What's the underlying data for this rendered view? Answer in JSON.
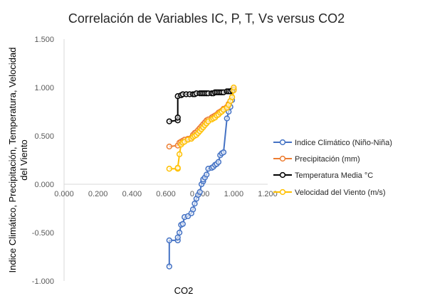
{
  "chart_data": {
    "type": "scatter",
    "title": "Correlación de Variables IC, P, T, Vs versus CO2",
    "xlabel": "CO2",
    "ylabel": "Indice Climático, Precipitación, Temperatura, Velocidad del Viento",
    "ylabel_lines": [
      "Indice Climático, Precipitación, Temperatura, Velocidad",
      "del Viento"
    ],
    "xlim": [
      0,
      1.2
    ],
    "ylim": [
      -1,
      1.5
    ],
    "xticks": [
      "0.000",
      "0.200",
      "0.400",
      "0.600",
      "0.800",
      "1.000",
      "1.200"
    ],
    "yticks": [
      "1.500",
      "1.000",
      "0.500",
      "0.000",
      "-0.500",
      "-1.000"
    ],
    "grid": false,
    "legend_position": "right",
    "series": [
      {
        "name": "Indice Climático (Niño-Niña)",
        "color": "#4472C4",
        "points": [
          [
            0.62,
            -0.85
          ],
          [
            0.62,
            -0.58
          ],
          [
            0.67,
            -0.58
          ],
          [
            0.67,
            -0.55
          ],
          [
            0.68,
            -0.5
          ],
          [
            0.69,
            -0.42
          ],
          [
            0.7,
            -0.41
          ],
          [
            0.71,
            -0.34
          ],
          [
            0.73,
            -0.33
          ],
          [
            0.75,
            -0.3
          ],
          [
            0.76,
            -0.26
          ],
          [
            0.77,
            -0.2
          ],
          [
            0.78,
            -0.15
          ],
          [
            0.79,
            -0.11
          ],
          [
            0.8,
            -0.08
          ],
          [
            0.81,
            0.0
          ],
          [
            0.82,
            0.03
          ],
          [
            0.82,
            0.05
          ],
          [
            0.83,
            0.07
          ],
          [
            0.84,
            0.1
          ],
          [
            0.85,
            0.16
          ],
          [
            0.87,
            0.17
          ],
          [
            0.88,
            0.18
          ],
          [
            0.89,
            0.2
          ],
          [
            0.9,
            0.21
          ],
          [
            0.91,
            0.23
          ],
          [
            0.92,
            0.3
          ],
          [
            0.93,
            0.32
          ],
          [
            0.94,
            0.33
          ],
          [
            0.96,
            0.68
          ],
          [
            0.97,
            0.75
          ],
          [
            0.98,
            0.8
          ],
          [
            0.99,
            0.87
          ],
          [
            1.0,
            0.98
          ]
        ]
      },
      {
        "name": "Precipitación (mm)",
        "color": "#ED7D31",
        "points": [
          [
            0.62,
            0.39
          ],
          [
            0.67,
            0.4
          ],
          [
            0.68,
            0.43
          ],
          [
            0.69,
            0.44
          ],
          [
            0.7,
            0.45
          ],
          [
            0.71,
            0.46
          ],
          [
            0.73,
            0.47
          ],
          [
            0.75,
            0.48
          ],
          [
            0.76,
            0.51
          ],
          [
            0.77,
            0.53
          ],
          [
            0.78,
            0.54
          ],
          [
            0.79,
            0.56
          ],
          [
            0.8,
            0.58
          ],
          [
            0.81,
            0.6
          ],
          [
            0.82,
            0.62
          ],
          [
            0.83,
            0.64
          ],
          [
            0.84,
            0.66
          ],
          [
            0.85,
            0.67
          ],
          [
            0.87,
            0.69
          ],
          [
            0.88,
            0.7
          ],
          [
            0.89,
            0.71
          ],
          [
            0.9,
            0.72
          ],
          [
            0.91,
            0.74
          ],
          [
            0.92,
            0.75
          ],
          [
            0.93,
            0.76
          ],
          [
            0.94,
            0.78
          ],
          [
            0.96,
            0.8
          ],
          [
            0.97,
            0.83
          ],
          [
            0.98,
            0.86
          ],
          [
            0.99,
            0.9
          ],
          [
            1.0,
            0.98
          ]
        ]
      },
      {
        "name": "Temperatura Media °C",
        "color": "#000000",
        "points": [
          [
            0.62,
            0.65
          ],
          [
            0.67,
            0.66
          ],
          [
            0.67,
            0.69
          ],
          [
            0.67,
            0.91
          ],
          [
            0.69,
            0.92
          ],
          [
            0.7,
            0.93
          ],
          [
            0.72,
            0.93
          ],
          [
            0.74,
            0.93
          ],
          [
            0.76,
            0.93
          ],
          [
            0.77,
            0.93
          ],
          [
            0.78,
            0.94
          ],
          [
            0.8,
            0.94
          ],
          [
            0.81,
            0.94
          ],
          [
            0.82,
            0.94
          ],
          [
            0.83,
            0.94
          ],
          [
            0.84,
            0.94
          ],
          [
            0.85,
            0.94
          ],
          [
            0.87,
            0.94
          ],
          [
            0.88,
            0.94
          ],
          [
            0.89,
            0.95
          ],
          [
            0.9,
            0.95
          ],
          [
            0.91,
            0.95
          ],
          [
            0.92,
            0.95
          ],
          [
            0.93,
            0.95
          ],
          [
            0.94,
            0.95
          ],
          [
            0.96,
            0.96
          ],
          [
            0.97,
            0.96
          ],
          [
            0.98,
            0.96
          ],
          [
            0.99,
            0.97
          ]
        ]
      },
      {
        "name": "Velocidad del Viento (m/s)",
        "color": "#FFC000",
        "points": [
          [
            0.62,
            0.16
          ],
          [
            0.67,
            0.16
          ],
          [
            0.67,
            0.17
          ],
          [
            0.68,
            0.31
          ],
          [
            0.69,
            0.41
          ],
          [
            0.7,
            0.43
          ],
          [
            0.71,
            0.44
          ],
          [
            0.73,
            0.46
          ],
          [
            0.75,
            0.47
          ],
          [
            0.76,
            0.49
          ],
          [
            0.77,
            0.5
          ],
          [
            0.78,
            0.51
          ],
          [
            0.79,
            0.53
          ],
          [
            0.8,
            0.55
          ],
          [
            0.81,
            0.57
          ],
          [
            0.82,
            0.59
          ],
          [
            0.83,
            0.61
          ],
          [
            0.84,
            0.63
          ],
          [
            0.85,
            0.65
          ],
          [
            0.87,
            0.67
          ],
          [
            0.88,
            0.68
          ],
          [
            0.89,
            0.69
          ],
          [
            0.9,
            0.71
          ],
          [
            0.91,
            0.72
          ],
          [
            0.92,
            0.74
          ],
          [
            0.93,
            0.75
          ],
          [
            0.94,
            0.77
          ],
          [
            0.96,
            0.79
          ],
          [
            0.97,
            0.82
          ],
          [
            0.98,
            0.86
          ],
          [
            0.99,
            0.9
          ],
          [
            1.0,
            0.97
          ],
          [
            1.0,
            1.0
          ]
        ]
      }
    ]
  }
}
